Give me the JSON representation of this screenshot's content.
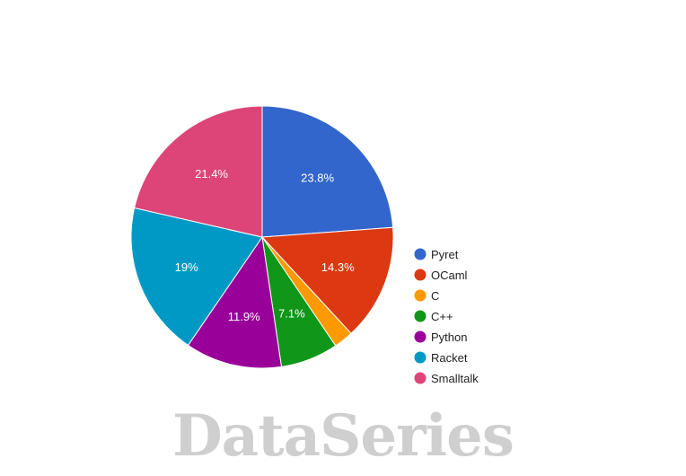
{
  "chart_data": {
    "type": "pie",
    "title": "",
    "legend_position": "right",
    "slices": [
      {
        "name": "Pyret",
        "value": 23.8,
        "label": "23.8%",
        "color": "#3366cc"
      },
      {
        "name": "OCaml",
        "value": 14.3,
        "label": "14.3%",
        "color": "#dc3912"
      },
      {
        "name": "C",
        "value": 2.4,
        "label": "",
        "color": "#ff9900"
      },
      {
        "name": "C++",
        "value": 7.1,
        "label": "7.1%",
        "color": "#109618"
      },
      {
        "name": "Python",
        "value": 11.9,
        "label": "11.9%",
        "color": "#990099"
      },
      {
        "name": "Racket",
        "value": 19.0,
        "label": "19%",
        "color": "#0099c6"
      },
      {
        "name": "Smalltalk",
        "value": 21.4,
        "label": "21.4%",
        "color": "#dd4477"
      }
    ]
  },
  "watermark": "DataSeries"
}
